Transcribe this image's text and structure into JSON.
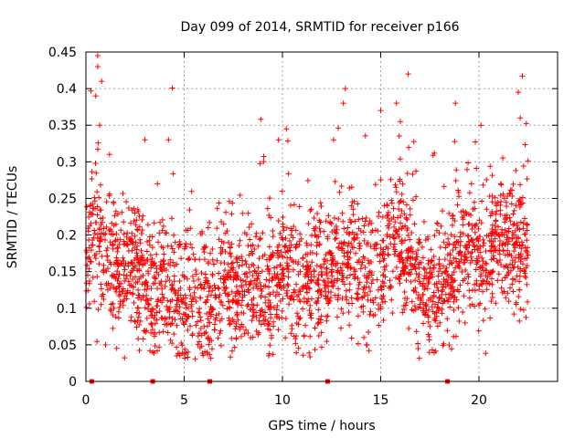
{
  "chart_data": {
    "type": "scatter",
    "title": "Day 099 of 2014, SRMTID for receiver p166",
    "xlabel": "GPS time / hours",
    "ylabel": "SRMTID / TECUs",
    "xlim": [
      0,
      24
    ],
    "ylim": [
      0,
      0.45
    ],
    "grid": true,
    "marker": "plus",
    "color": "#ff0000",
    "xticks": [
      0,
      5,
      10,
      15,
      20
    ],
    "xtick_labels": [
      "0",
      "5",
      "10",
      "15",
      "20"
    ],
    "yticks": [
      0,
      0.05,
      0.1,
      0.15,
      0.2,
      0.25,
      0.3,
      0.35,
      0.4,
      0.45
    ],
    "ytick_labels": [
      "0",
      "0.05",
      "0.1",
      "0.15",
      "0.2",
      "0.25",
      "0.3",
      "0.35",
      "0.4",
      "0.45"
    ],
    "zero_markers_x": [
      0.3,
      3.4,
      6.3,
      12.3,
      18.4
    ],
    "series": [
      {
        "name": "SRMTID",
        "baseline": [
          [
            0.0,
            0.16
          ],
          [
            0.5,
            0.2
          ],
          [
            1.0,
            0.17
          ],
          [
            1.5,
            0.15
          ],
          [
            2.0,
            0.15
          ],
          [
            2.5,
            0.15
          ],
          [
            3.0,
            0.13
          ],
          [
            3.5,
            0.12
          ],
          [
            4.0,
            0.14
          ],
          [
            4.5,
            0.12
          ],
          [
            5.0,
            0.1
          ],
          [
            5.5,
            0.1
          ],
          [
            6.0,
            0.1
          ],
          [
            6.5,
            0.11
          ],
          [
            7.0,
            0.13
          ],
          [
            7.5,
            0.13
          ],
          [
            8.0,
            0.13
          ],
          [
            8.5,
            0.12
          ],
          [
            9.0,
            0.12
          ],
          [
            9.5,
            0.13
          ],
          [
            10.0,
            0.15
          ],
          [
            10.5,
            0.14
          ],
          [
            11.0,
            0.13
          ],
          [
            11.5,
            0.14
          ],
          [
            12.0,
            0.13
          ],
          [
            12.5,
            0.15
          ],
          [
            13.0,
            0.16
          ],
          [
            13.5,
            0.17
          ],
          [
            14.0,
            0.15
          ],
          [
            14.5,
            0.15
          ],
          [
            15.0,
            0.17
          ],
          [
            15.5,
            0.17
          ],
          [
            16.0,
            0.18
          ],
          [
            16.5,
            0.17
          ],
          [
            17.0,
            0.14
          ],
          [
            17.5,
            0.12
          ],
          [
            18.0,
            0.13
          ],
          [
            18.5,
            0.15
          ],
          [
            19.0,
            0.17
          ],
          [
            19.5,
            0.18
          ],
          [
            20.0,
            0.16
          ],
          [
            20.5,
            0.17
          ],
          [
            21.0,
            0.2
          ],
          [
            21.5,
            0.19
          ],
          [
            22.0,
            0.18
          ],
          [
            22.5,
            0.17
          ]
        ],
        "spread": 0.05,
        "points_per_hour": 110,
        "spikes": [
          [
            0.6,
            0.445
          ],
          [
            0.6,
            0.43
          ],
          [
            0.8,
            0.41
          ],
          [
            0.5,
            0.39
          ],
          [
            0.7,
            0.35
          ],
          [
            1.2,
            0.31
          ],
          [
            1.0,
            0.05
          ],
          [
            3.4,
            0.04
          ],
          [
            3.0,
            0.33
          ],
          [
            4.2,
            0.33
          ],
          [
            8.9,
            0.358
          ],
          [
            10.2,
            0.345
          ],
          [
            9.8,
            0.33
          ],
          [
            12.6,
            0.33
          ],
          [
            13.2,
            0.4
          ],
          [
            13.1,
            0.38
          ],
          [
            15.0,
            0.37
          ],
          [
            15.8,
            0.38
          ],
          [
            16.0,
            0.355
          ],
          [
            16.4,
            0.42
          ],
          [
            17.4,
            0.09
          ],
          [
            18.8,
            0.38
          ],
          [
            20.1,
            0.35
          ],
          [
            22.0,
            0.395
          ],
          [
            22.1,
            0.36
          ],
          [
            9.3,
            0.035
          ],
          [
            14.3,
            0.05
          ],
          [
            5.2,
            0.04
          ]
        ]
      }
    ]
  }
}
